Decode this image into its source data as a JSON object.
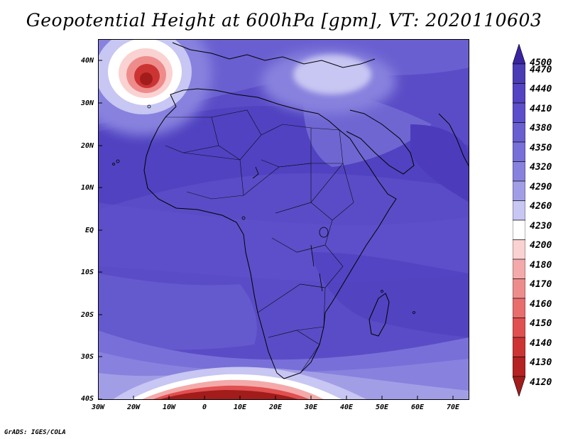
{
  "title": "Geopotential Height at 600hPa [gpm], VT: 2020110603",
  "credit": "GrADS: IGES/COLA",
  "lat_labels": [
    "40N",
    "30N",
    "20N",
    "10N",
    "EQ",
    "10S",
    "20S",
    "30S",
    "40S"
  ],
  "lon_labels": [
    "30W",
    "20W",
    "10W",
    "0",
    "10E",
    "20E",
    "30E",
    "40E",
    "50E",
    "60E",
    "70E"
  ],
  "colorbar": {
    "labels": [
      "4500",
      "4470",
      "4440",
      "4410",
      "4380",
      "4350",
      "4320",
      "4290",
      "4260",
      "4230",
      "4200",
      "4180",
      "4170",
      "4160",
      "4150",
      "4140",
      "4130",
      "4120"
    ],
    "colors": [
      "#3a24a0",
      "#4a3cb4",
      "#5443c2",
      "#5d4fca",
      "#6a5fd0",
      "#7870d8",
      "#8882de",
      "#a29ee6",
      "#c8c6f2",
      "#ffffff",
      "#fbd2d2",
      "#f4aaaa",
      "#ee8c8c",
      "#e86e6e",
      "#e05050",
      "#cc3434",
      "#b52222",
      "#a21c1c"
    ]
  },
  "field_colors": {
    "background": "#5a4cc6",
    "ridge_north": "#4e3fbd",
    "trough_north": "#7168d2",
    "mediterranean_low": "#c8c6f2",
    "south_gradient_1": "#8882de",
    "south_gradient_2": "#c8c6f2",
    "south_low_core": "#a21c1c",
    "atlantic_low_core": "#b52222"
  }
}
